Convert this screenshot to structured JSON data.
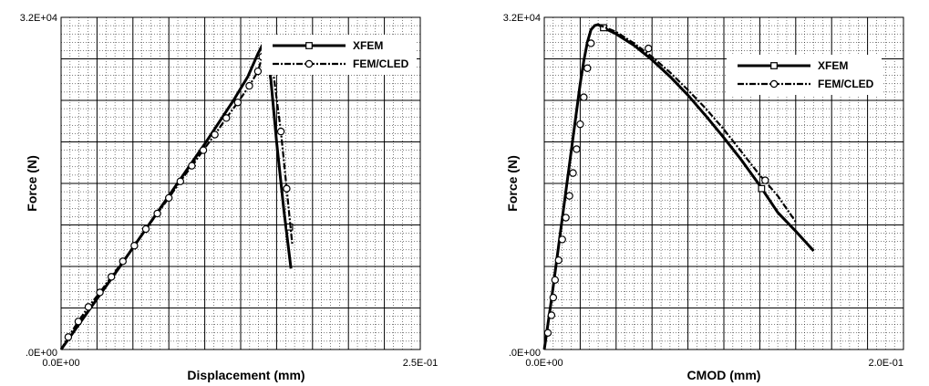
{
  "chart_data": [
    {
      "type": "line",
      "xlabel": "Displacement (mm)",
      "ylabel": "Force (N)",
      "xlim": [
        0,
        0.25
      ],
      "ylim": [
        0,
        32000
      ],
      "x_tick_labels": [
        "0.0E+00",
        "2.5E-01"
      ],
      "y_tick_labels": [
        ".0E+00",
        "3.2E+04"
      ],
      "grid": true,
      "legend_position": "top-right",
      "series": [
        {
          "name": "XFEM",
          "marker": "square",
          "x": [
            0.0,
            0.02,
            0.04,
            0.06,
            0.08,
            0.1,
            0.12,
            0.13,
            0.137,
            0.14,
            0.143,
            0.146,
            0.15,
            0.155,
            0.16
          ],
          "y": [
            0,
            3900,
            7800,
            11800,
            15800,
            19800,
            24000,
            26300,
            28500,
            29300,
            28700,
            26000,
            20000,
            13500,
            7800
          ],
          "markers_at": [
            [
              0.142,
              28800
            ],
            [
              0.159,
              11800
            ]
          ]
        },
        {
          "name": "FEM/CLED",
          "marker": "circle",
          "x": [
            0.0,
            0.005,
            0.012,
            0.019,
            0.027,
            0.035,
            0.043,
            0.051,
            0.059,
            0.067,
            0.075,
            0.083,
            0.091,
            0.099,
            0.107,
            0.115,
            0.123,
            0.131,
            0.137,
            0.14,
            0.143,
            0.147,
            0.153,
            0.157,
            0.161
          ],
          "y": [
            0,
            1200,
            2700,
            4100,
            5500,
            7000,
            8500,
            10000,
            11600,
            13100,
            14600,
            16200,
            17700,
            19200,
            20700,
            22300,
            23800,
            25400,
            26800,
            28200,
            28600,
            27400,
            21000,
            15500,
            10000
          ],
          "markers_at": [
            [
              0.005,
              1200
            ],
            [
              0.012,
              2700
            ],
            [
              0.019,
              4100
            ],
            [
              0.027,
              5500
            ],
            [
              0.035,
              7000
            ],
            [
              0.043,
              8500
            ],
            [
              0.051,
              10000
            ],
            [
              0.059,
              11600
            ],
            [
              0.067,
              13100
            ],
            [
              0.075,
              14600
            ],
            [
              0.083,
              16200
            ],
            [
              0.091,
              17700
            ],
            [
              0.099,
              19200
            ],
            [
              0.107,
              20700
            ],
            [
              0.115,
              22300
            ],
            [
              0.123,
              23800
            ],
            [
              0.131,
              25400
            ],
            [
              0.137,
              26800
            ],
            [
              0.14,
              28200
            ],
            [
              0.147,
              27400
            ],
            [
              0.153,
              21000
            ],
            [
              0.157,
              15500
            ]
          ]
        }
      ]
    },
    {
      "type": "line",
      "xlabel": "CMOD (mm)",
      "ylabel": "Force (N)",
      "xlim": [
        0,
        0.2
      ],
      "ylim": [
        0,
        32000
      ],
      "x_tick_labels": [
        "0.0E+00",
        "2.0E-01"
      ],
      "y_tick_labels": [
        ".0E+00",
        "3.2E+04"
      ],
      "grid": true,
      "legend_position": "top-right",
      "series": [
        {
          "name": "XFEM",
          "marker": "square",
          "x": [
            0.0,
            0.002,
            0.004,
            0.006,
            0.008,
            0.01,
            0.012,
            0.014,
            0.016,
            0.018,
            0.02,
            0.022,
            0.024,
            0.026,
            0.028,
            0.03,
            0.033,
            0.04,
            0.05,
            0.06,
            0.07,
            0.08,
            0.09,
            0.1,
            0.11,
            0.12,
            0.13,
            0.14,
            0.15
          ],
          "y": [
            0,
            2400,
            4800,
            7400,
            10000,
            12600,
            15200,
            17800,
            20400,
            23000,
            25600,
            27800,
            29600,
            30800,
            31200,
            31300,
            31000,
            30400,
            29300,
            27900,
            26300,
            24500,
            22500,
            20400,
            18200,
            15800,
            13200,
            11400,
            9500
          ],
          "markers_at": [
            [
              0.033,
              31000
            ],
            [
              0.121,
              15500
            ]
          ]
        },
        {
          "name": "FEM/CLED",
          "marker": "circle",
          "x": [
            0.0,
            0.002,
            0.004,
            0.006,
            0.008,
            0.01,
            0.012,
            0.014,
            0.016,
            0.018,
            0.02,
            0.022,
            0.024,
            0.026,
            0.028,
            0.03,
            0.04,
            0.05,
            0.06,
            0.07,
            0.08,
            0.09,
            0.1,
            0.11,
            0.12,
            0.13,
            0.14
          ],
          "y": [
            0,
            2400,
            4800,
            7400,
            10000,
            12600,
            15200,
            17800,
            20400,
            23000,
            25600,
            27800,
            29600,
            30800,
            31200,
            31300,
            30600,
            29500,
            28200,
            26700,
            25000,
            23200,
            21200,
            19000,
            16800,
            14800,
            12300
          ],
          "markers_at": [
            [
              0.002,
              1600
            ],
            [
              0.004,
              3300
            ],
            [
              0.005,
              5000
            ],
            [
              0.006,
              6700
            ],
            [
              0.008,
              8600
            ],
            [
              0.01,
              10600
            ],
            [
              0.012,
              12700
            ],
            [
              0.014,
              14800
            ],
            [
              0.016,
              17000
            ],
            [
              0.018,
              19300
            ],
            [
              0.02,
              21700
            ],
            [
              0.022,
              24300
            ],
            [
              0.024,
              27100
            ],
            [
              0.026,
              29500
            ],
            [
              0.058,
              29000
            ],
            [
              0.123,
              16300
            ]
          ]
        }
      ]
    }
  ]
}
